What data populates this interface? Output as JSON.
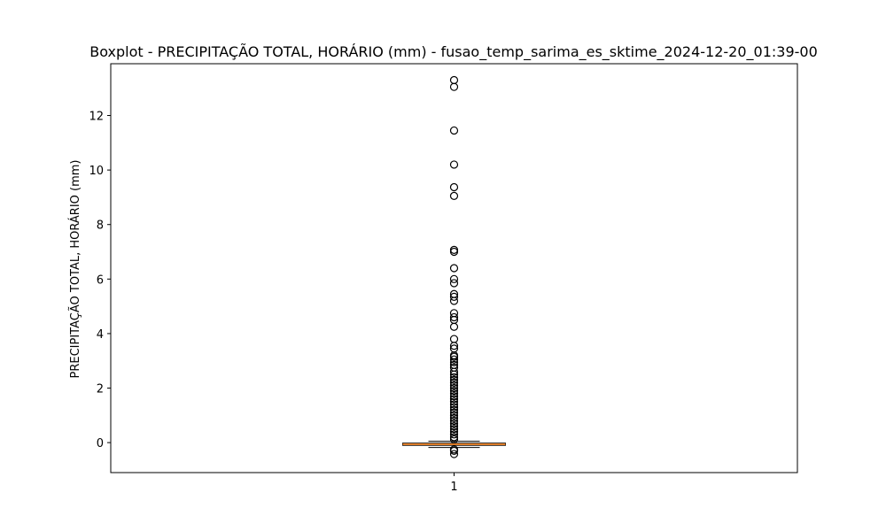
{
  "chart_data": {
    "type": "boxplot",
    "title": "Boxplot - PRECIPITAÇÃO TOTAL, HORÁRIO (mm) - fusao_temp_sarima_es_sktime_2024-12-20_01:39-00",
    "xlabel": "",
    "ylabel": "PRECIPITAÇÃO TOTAL, HORÁRIO (mm)",
    "categories": [
      "1"
    ],
    "ylim": [
      -1.1,
      13.9
    ],
    "yticks": [
      0,
      2,
      4,
      6,
      8,
      10,
      12
    ],
    "grid": false,
    "legend": "none",
    "colors": {
      "box": "#000000",
      "median": "#ff7f0e",
      "axes": "#000000",
      "flier": "#000000"
    },
    "boxes": [
      {
        "category": "1",
        "whisker_low": -0.18,
        "q1": -0.1,
        "median": -0.06,
        "q3": -0.02,
        "whisker_high": 0.05,
        "outliers": [
          13.3,
          13.05,
          11.45,
          10.2,
          9.37,
          9.05,
          7.07,
          7.0,
          6.4,
          6.0,
          5.85,
          5.45,
          5.35,
          5.2,
          4.75,
          4.6,
          4.5,
          4.25,
          3.8,
          3.55,
          3.45,
          3.2,
          3.15,
          3.05,
          2.95,
          2.85,
          2.75,
          2.6,
          2.5,
          2.4,
          2.3,
          2.2,
          2.1,
          2.0,
          1.9,
          1.8,
          1.7,
          1.6,
          1.5,
          1.4,
          1.3,
          1.2,
          1.1,
          1.0,
          0.9,
          0.8,
          0.7,
          0.6,
          0.5,
          0.4,
          0.3,
          0.2,
          0.12,
          -0.25,
          -0.3,
          -0.42
        ]
      }
    ]
  }
}
